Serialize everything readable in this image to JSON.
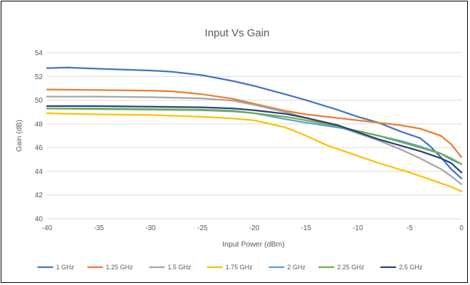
{
  "chart_data": {
    "type": "line",
    "title": "Input Vs Gain",
    "xlabel": "Input Power (dBm)",
    "ylabel": "Gain (dB)",
    "xlim": [
      -40,
      0
    ],
    "ylim": [
      40,
      54
    ],
    "xticks": [
      -40,
      -35,
      -30,
      -25,
      -20,
      -15,
      -10,
      -5,
      0
    ],
    "yticks": [
      40,
      42,
      44,
      46,
      48,
      50,
      52,
      54
    ],
    "grid": "horizontal",
    "legend_position": "bottom",
    "series": [
      {
        "name": "1 GHz",
        "color": "#4472C4",
        "points": [
          [
            -40,
            52.7
          ],
          [
            -38,
            52.75
          ],
          [
            -35,
            52.65
          ],
          [
            -30,
            52.5
          ],
          [
            -28,
            52.4
          ],
          [
            -25,
            52.1
          ],
          [
            -22,
            51.6
          ],
          [
            -20,
            51.2
          ],
          [
            -17,
            50.5
          ],
          [
            -15,
            50.0
          ],
          [
            -12,
            49.2
          ],
          [
            -10,
            48.6
          ],
          [
            -8,
            48.1
          ],
          [
            -6,
            47.4
          ],
          [
            -4,
            46.8
          ],
          [
            -3,
            46.1
          ],
          [
            -2,
            45.2
          ],
          [
            -1,
            44.2
          ],
          [
            0,
            43.4
          ]
        ]
      },
      {
        "name": "1.25 GHz",
        "color": "#ED7D31",
        "points": [
          [
            -40,
            50.9
          ],
          [
            -35,
            50.85
          ],
          [
            -30,
            50.8
          ],
          [
            -28,
            50.75
          ],
          [
            -25,
            50.5
          ],
          [
            -22,
            50.1
          ],
          [
            -20,
            49.7
          ],
          [
            -17,
            49.1
          ],
          [
            -15,
            48.8
          ],
          [
            -12,
            48.5
          ],
          [
            -10,
            48.3
          ],
          [
            -8,
            48.1
          ],
          [
            -6,
            47.9
          ],
          [
            -4,
            47.6
          ],
          [
            -2,
            47.0
          ],
          [
            -1,
            46.3
          ],
          [
            0,
            45.2
          ]
        ]
      },
      {
        "name": "1.5 GHz",
        "color": "#A5A5A5",
        "points": [
          [
            -40,
            50.3
          ],
          [
            -35,
            50.3
          ],
          [
            -30,
            50.25
          ],
          [
            -25,
            50.15
          ],
          [
            -22,
            49.95
          ],
          [
            -20,
            49.6
          ],
          [
            -17,
            49.0
          ],
          [
            -15,
            48.5
          ],
          [
            -12,
            47.8
          ],
          [
            -10,
            47.2
          ],
          [
            -8,
            46.6
          ],
          [
            -6,
            45.9
          ],
          [
            -4,
            45.1
          ],
          [
            -2,
            44.2
          ],
          [
            -1,
            43.6
          ],
          [
            0,
            42.9
          ]
        ]
      },
      {
        "name": "1.75 GHz",
        "color": "#FFC000",
        "points": [
          [
            -40,
            48.9
          ],
          [
            -38,
            48.85
          ],
          [
            -35,
            48.8
          ],
          [
            -30,
            48.75
          ],
          [
            -25,
            48.6
          ],
          [
            -22,
            48.45
          ],
          [
            -20,
            48.3
          ],
          [
            -17,
            47.7
          ],
          [
            -15,
            47.0
          ],
          [
            -13,
            46.2
          ],
          [
            -10,
            45.3
          ],
          [
            -8,
            44.7
          ],
          [
            -5,
            43.9
          ],
          [
            -3,
            43.3
          ],
          [
            -1,
            42.7
          ],
          [
            0,
            42.3
          ]
        ]
      },
      {
        "name": "2 GHz",
        "color": "#5B9BD5",
        "points": [
          [
            -40,
            49.3
          ],
          [
            -35,
            49.3
          ],
          [
            -30,
            49.25
          ],
          [
            -25,
            49.2
          ],
          [
            -22,
            49.1
          ],
          [
            -20,
            48.9
          ],
          [
            -17,
            48.4
          ],
          [
            -15,
            48.1
          ],
          [
            -12,
            47.7
          ],
          [
            -10,
            47.4
          ],
          [
            -8,
            47.0
          ],
          [
            -6,
            46.6
          ],
          [
            -4,
            46.1
          ],
          [
            -2,
            45.5
          ],
          [
            -1,
            45.0
          ],
          [
            0,
            44.6
          ]
        ]
      },
      {
        "name": "2.25 GHz",
        "color": "#70AD47",
        "points": [
          [
            -40,
            49.3
          ],
          [
            -35,
            49.25
          ],
          [
            -30,
            49.2
          ],
          [
            -25,
            49.15
          ],
          [
            -22,
            49.05
          ],
          [
            -20,
            48.9
          ],
          [
            -17,
            48.6
          ],
          [
            -15,
            48.3
          ],
          [
            -12,
            47.8
          ],
          [
            -10,
            47.4
          ],
          [
            -8,
            47.0
          ],
          [
            -6,
            46.5
          ],
          [
            -4,
            46.0
          ],
          [
            -2,
            45.5
          ],
          [
            -1,
            45.1
          ],
          [
            0,
            44.6
          ]
        ]
      },
      {
        "name": "2.5 GHz",
        "color": "#264478",
        "points": [
          [
            -40,
            49.5
          ],
          [
            -35,
            49.5
          ],
          [
            -30,
            49.45
          ],
          [
            -25,
            49.4
          ],
          [
            -22,
            49.3
          ],
          [
            -20,
            49.15
          ],
          [
            -17,
            48.85
          ],
          [
            -15,
            48.5
          ],
          [
            -12,
            47.9
          ],
          [
            -10,
            47.3
          ],
          [
            -8,
            46.7
          ],
          [
            -6,
            46.2
          ],
          [
            -4,
            45.7
          ],
          [
            -2,
            45.1
          ],
          [
            -1,
            44.7
          ],
          [
            0,
            43.9
          ]
        ]
      }
    ]
  }
}
